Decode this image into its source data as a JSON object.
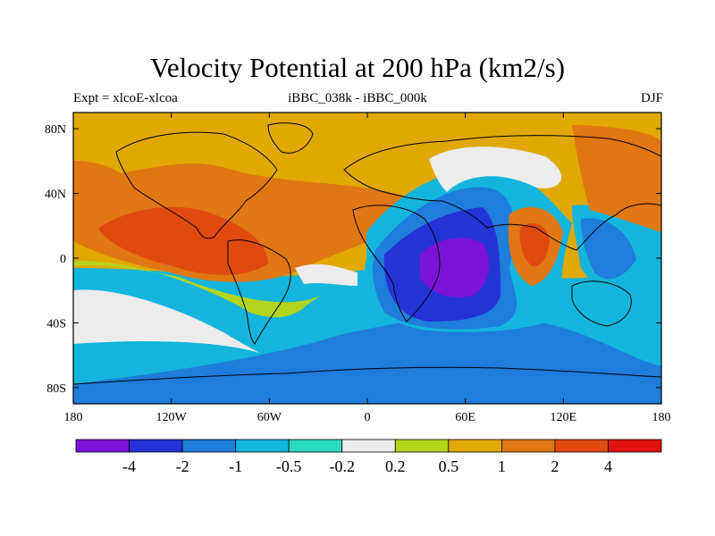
{
  "title": "Velocity Potential at 200 hPa (km2/s)",
  "subtitle_left": "Expt = xlcoE-xlcoa",
  "subtitle_center": "iBBC_038k - iBBC_000k",
  "subtitle_right": "DJF",
  "colors": {
    "levels": [
      "#7a13d6",
      "#2433d6",
      "#1f7ddb",
      "#13b5dd",
      "#2ad9c0",
      "#ececec",
      "#b3d41c",
      "#e0a800",
      "#e07712",
      "#e14a0f",
      "#e0120f"
    ]
  },
  "axes": {
    "x_ticks": [
      "180",
      "120W",
      "60W",
      "0",
      "60E",
      "120E",
      "180"
    ],
    "y_ticks": [
      "80N",
      "40N",
      "0",
      "40S",
      "80S"
    ]
  },
  "colorbar": {
    "labels": [
      "-4",
      "-2",
      "-1",
      "-0.5",
      "-0.2",
      "0.2",
      "0.5",
      "1",
      "2",
      "4"
    ]
  }
}
